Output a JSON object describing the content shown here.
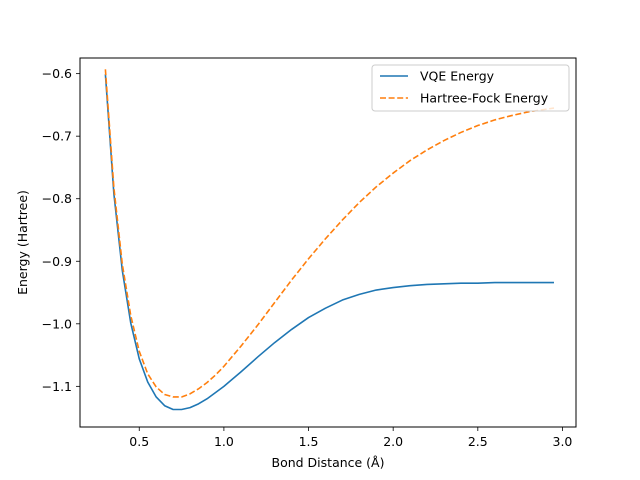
{
  "chart_data": {
    "type": "line",
    "title": "",
    "xlabel": "Bond Distance (Å)",
    "ylabel": "Energy (Hartree)",
    "xlim": [
      0.15,
      3.08
    ],
    "ylim": [
      -1.165,
      -0.575
    ],
    "xticks": [
      0.5,
      1.0,
      1.5,
      2.0,
      2.5,
      3.0
    ],
    "xtick_labels": [
      "0.5",
      "1.0",
      "1.5",
      "2.0",
      "2.5",
      "3.0"
    ],
    "yticks": [
      -1.1,
      -1.0,
      -0.9,
      -0.8,
      -0.7,
      -0.6
    ],
    "ytick_labels": [
      "−1.1",
      "−1.0",
      "−0.9",
      "−0.8",
      "−0.7",
      "−0.6"
    ],
    "grid": false,
    "legend_position": "top-right",
    "series": [
      {
        "name": "VQE Energy",
        "color": "#1f77b4",
        "style": "solid",
        "x": [
          0.3,
          0.35,
          0.4,
          0.45,
          0.5,
          0.55,
          0.6,
          0.65,
          0.7,
          0.75,
          0.8,
          0.85,
          0.9,
          0.95,
          1.0,
          1.1,
          1.2,
          1.3,
          1.4,
          1.5,
          1.6,
          1.7,
          1.8,
          1.9,
          2.0,
          2.1,
          2.2,
          2.3,
          2.4,
          2.5,
          2.6,
          2.7,
          2.8,
          2.95
        ],
        "y": [
          -0.601,
          -0.792,
          -0.915,
          -0.999,
          -1.056,
          -1.093,
          -1.117,
          -1.131,
          -1.137,
          -1.137,
          -1.134,
          -1.128,
          -1.12,
          -1.11,
          -1.1,
          -1.077,
          -1.053,
          -1.03,
          -1.009,
          -0.99,
          -0.975,
          -0.962,
          -0.953,
          -0.946,
          -0.942,
          -0.939,
          -0.937,
          -0.936,
          -0.935,
          -0.935,
          -0.934,
          -0.934,
          -0.934,
          -0.934
        ]
      },
      {
        "name": "Hartree-Fock Energy",
        "color": "#ff7f0e",
        "style": "dashed",
        "x": [
          0.3,
          0.35,
          0.4,
          0.45,
          0.5,
          0.55,
          0.6,
          0.65,
          0.7,
          0.75,
          0.8,
          0.85,
          0.9,
          0.95,
          1.0,
          1.1,
          1.2,
          1.3,
          1.4,
          1.5,
          1.6,
          1.7,
          1.8,
          1.9,
          2.0,
          2.1,
          2.2,
          2.3,
          2.4,
          2.5,
          2.6,
          2.7,
          2.8,
          2.95
        ],
        "y": [
          -0.593,
          -0.782,
          -0.905,
          -0.987,
          -1.044,
          -1.08,
          -1.101,
          -1.113,
          -1.117,
          -1.117,
          -1.112,
          -1.104,
          -1.094,
          -1.082,
          -1.068,
          -1.036,
          -1.002,
          -0.966,
          -0.93,
          -0.896,
          -0.864,
          -0.834,
          -0.806,
          -0.781,
          -0.759,
          -0.739,
          -0.722,
          -0.707,
          -0.694,
          -0.683,
          -0.674,
          -0.667,
          -0.661,
          -0.655
        ]
      }
    ]
  }
}
